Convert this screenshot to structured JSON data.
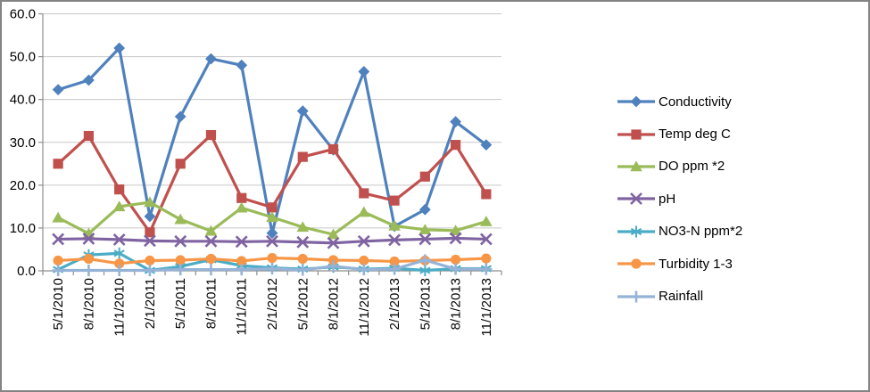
{
  "chart_data": {
    "type": "line",
    "title": "",
    "xlabel": "",
    "ylabel": "",
    "grid": true,
    "legend_position": "right",
    "categories": [
      "5/1/2010",
      "8/1/2010",
      "11/1/2010",
      "2/1/2011",
      "5/1/2011",
      "8/1/2011",
      "11/1/2011",
      "2/1/2012",
      "5/1/2012",
      "8/1/2012",
      "11/1/2012",
      "2/1/2013",
      "5/1/2013",
      "8/1/2013",
      "11/1/2013"
    ],
    "y_axis": {
      "min": 0,
      "max": 60,
      "step": 10,
      "tick_labels": [
        "0.0",
        "10.0",
        "20.0",
        "30.0",
        "40.0",
        "50.0",
        "60.0"
      ]
    },
    "series": [
      {
        "name": "Conductivity",
        "marker": "diamond",
        "color": "#4F81BD",
        "values": [
          42.3,
          44.5,
          52.0,
          12.7,
          36.0,
          49.5,
          48.0,
          8.8,
          37.3,
          28.2,
          46.5,
          10.4,
          14.3,
          34.8,
          29.4
        ]
      },
      {
        "name": "Temp deg C",
        "marker": "square",
        "color": "#C0504D",
        "values": [
          25.0,
          31.5,
          19.0,
          9.0,
          25.0,
          31.7,
          17.0,
          14.8,
          26.6,
          28.4,
          18.1,
          16.4,
          22.0,
          29.4,
          17.9
        ]
      },
      {
        "name": "DO ppm *2",
        "marker": "triangle",
        "color": "#9BBB59",
        "values": [
          12.4,
          8.7,
          15.0,
          16.0,
          12.0,
          9.3,
          14.7,
          12.5,
          10.2,
          8.5,
          13.7,
          10.5,
          9.6,
          9.4,
          11.5
        ]
      },
      {
        "name": "pH",
        "marker": "x",
        "color": "#8064A2",
        "values": [
          7.4,
          7.5,
          7.3,
          7.0,
          6.9,
          6.9,
          6.8,
          6.9,
          6.7,
          6.5,
          6.9,
          7.2,
          7.4,
          7.6,
          7.4
        ]
      },
      {
        "name": "NO3-N ppm*2",
        "marker": "asterisk",
        "color": "#4BACC6",
        "values": [
          0.3,
          3.7,
          4.1,
          0.1,
          1.0,
          2.6,
          1.2,
          0.7,
          0.4,
          0.9,
          0.4,
          0.6,
          0.1,
          0.5,
          0.5
        ]
      },
      {
        "name": "Turbidity 1-3",
        "marker": "circle",
        "color": "#F79646",
        "values": [
          2.4,
          2.8,
          1.7,
          2.4,
          2.5,
          2.8,
          2.3,
          3.0,
          2.8,
          2.5,
          2.4,
          2.2,
          2.4,
          2.6,
          2.9
        ]
      },
      {
        "name": "Rainfall",
        "marker": "plus",
        "color": "#95B3D7",
        "values": [
          0.1,
          0.1,
          0.1,
          0.1,
          0.3,
          0.3,
          0.3,
          0.5,
          0.2,
          1.1,
          0.3,
          0.4,
          2.5,
          0.4,
          0.4
        ]
      }
    ],
    "style": {
      "gridline_color": "#C7C7C7",
      "axis_color": "#8E8E8E",
      "tick_text_color": "#000000",
      "frame_border_color": "#848484"
    }
  }
}
